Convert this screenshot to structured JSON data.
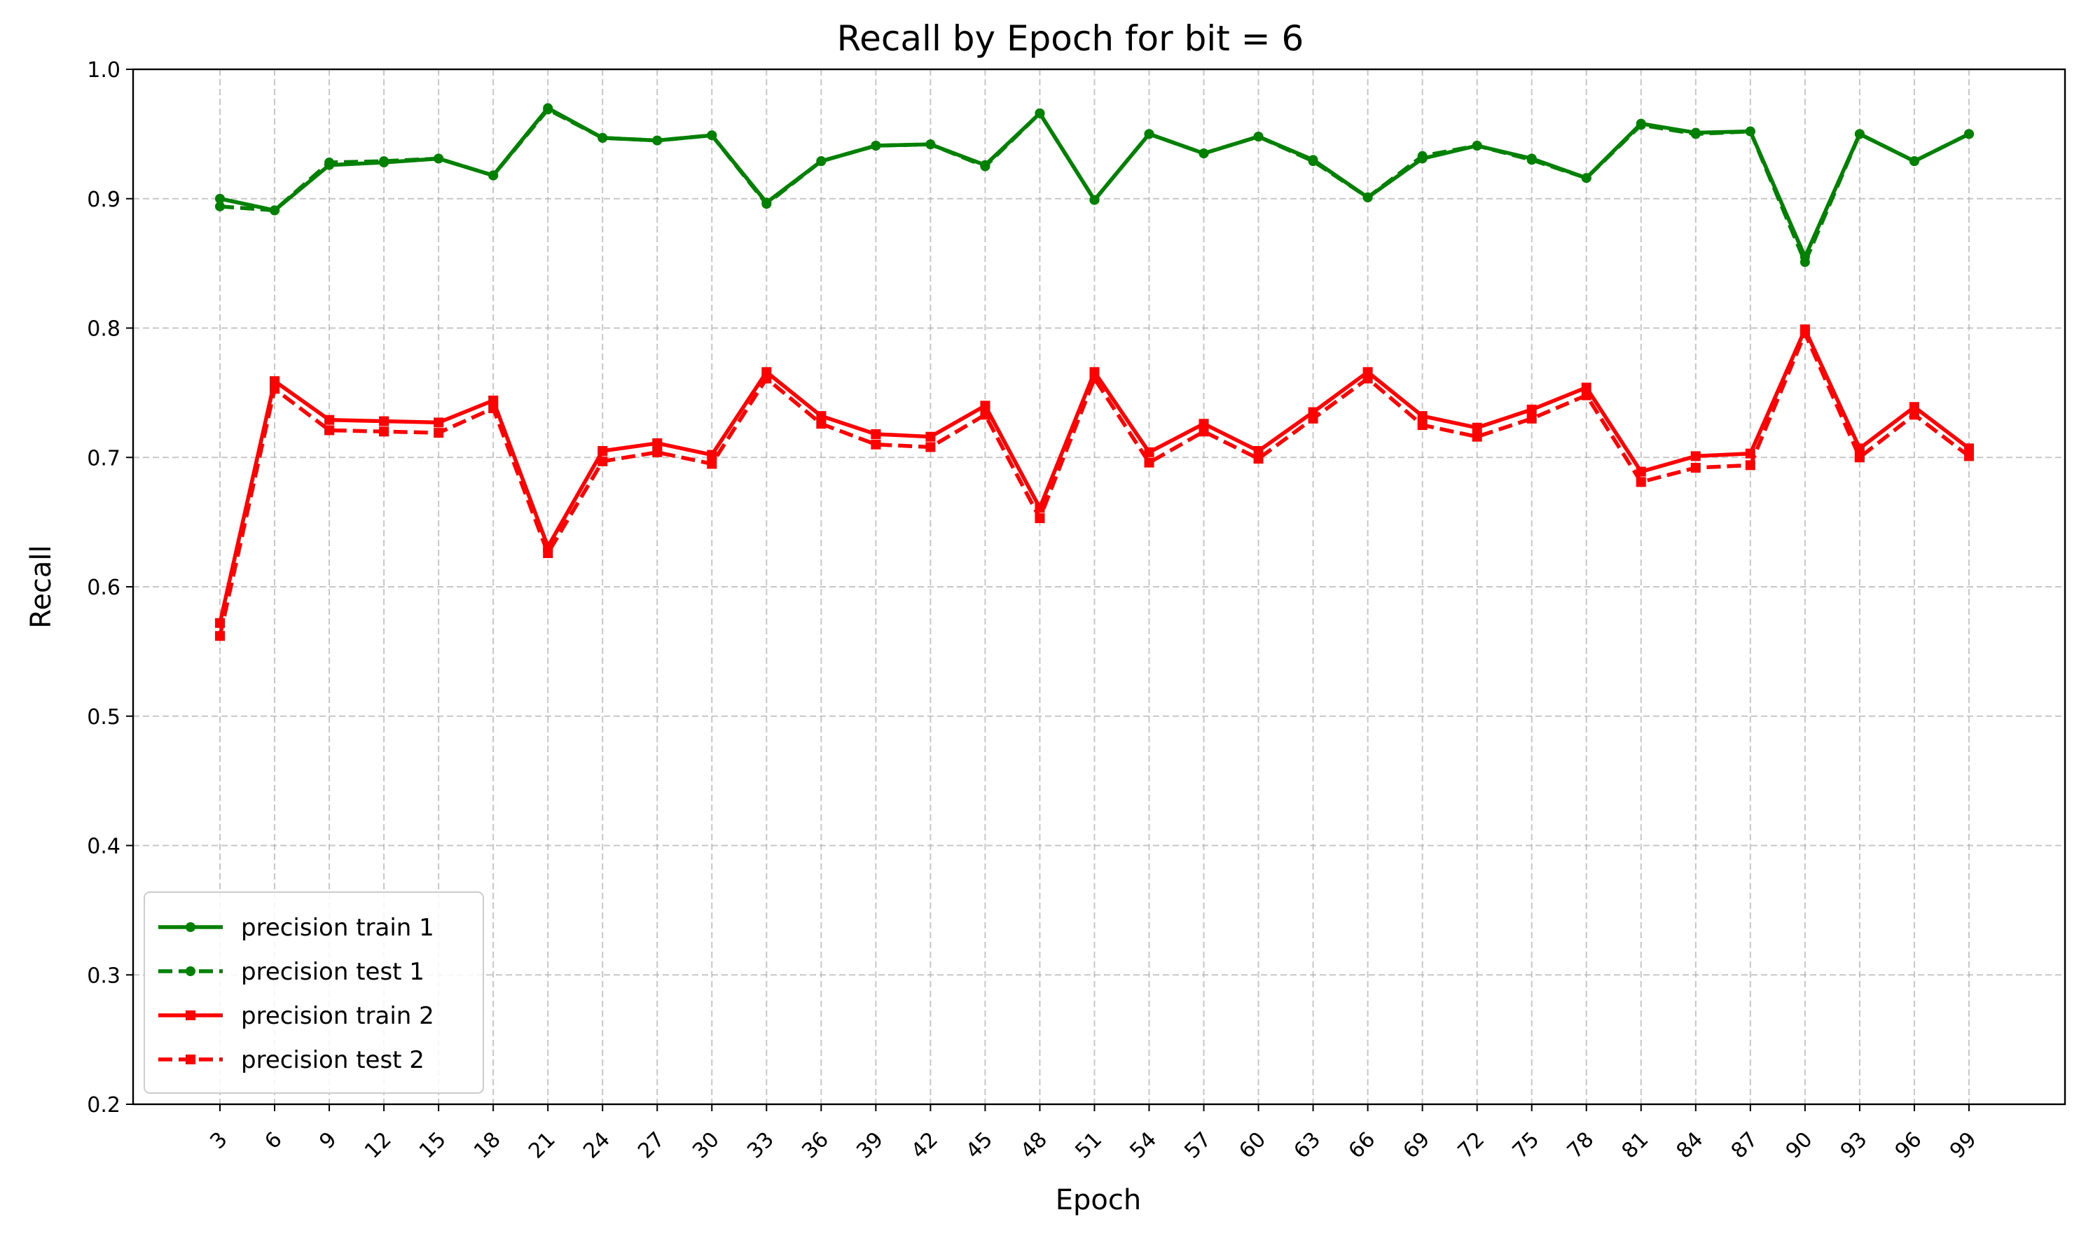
{
  "chart_data": {
    "type": "line",
    "title": "Recall by Epoch for bit = 6",
    "xlabel": "Epoch",
    "ylabel": "Recall",
    "ylim": [
      0.2,
      1.0
    ],
    "yticks": [
      "0.2",
      "0.3",
      "0.4",
      "0.5",
      "0.6",
      "0.7",
      "0.8",
      "0.9",
      "1.0"
    ],
    "x": [
      3,
      6,
      9,
      12,
      15,
      18,
      21,
      24,
      27,
      30,
      33,
      36,
      39,
      42,
      45,
      48,
      51,
      54,
      57,
      60,
      63,
      66,
      69,
      72,
      75,
      78,
      81,
      84,
      87,
      90,
      93,
      96,
      99
    ],
    "grid": true,
    "legend_position": "lower-left",
    "series": [
      {
        "name": "precision train 1",
        "color": "#008000",
        "style": "solid",
        "marker": "circle",
        "values": [
          0.9,
          0.891,
          0.926,
          0.928,
          0.931,
          0.918,
          0.97,
          0.947,
          0.945,
          0.949,
          0.897,
          0.929,
          0.941,
          0.942,
          0.926,
          0.966,
          0.899,
          0.95,
          0.935,
          0.948,
          0.93,
          0.901,
          0.931,
          0.941,
          0.931,
          0.916,
          0.958,
          0.951,
          0.952,
          0.855,
          0.95,
          0.929,
          0.95
        ]
      },
      {
        "name": "precision test 1",
        "color": "#008000",
        "style": "dashed",
        "marker": "circle",
        "values": [
          0.894,
          0.891,
          0.928,
          0.929,
          0.931,
          0.918,
          0.969,
          0.947,
          0.945,
          0.949,
          0.896,
          0.929,
          0.941,
          0.942,
          0.925,
          0.966,
          0.899,
          0.95,
          0.935,
          0.948,
          0.929,
          0.901,
          0.933,
          0.941,
          0.93,
          0.916,
          0.957,
          0.95,
          0.952,
          0.851,
          0.95,
          0.929,
          0.95
        ]
      },
      {
        "name": "precision train 2",
        "color": "#ff0000",
        "style": "solid",
        "marker": "square",
        "values": [
          0.572,
          0.759,
          0.729,
          0.728,
          0.727,
          0.744,
          0.631,
          0.705,
          0.711,
          0.702,
          0.766,
          0.732,
          0.718,
          0.716,
          0.74,
          0.661,
          0.766,
          0.704,
          0.726,
          0.705,
          0.735,
          0.766,
          0.732,
          0.723,
          0.737,
          0.754,
          0.689,
          0.701,
          0.703,
          0.799,
          0.707,
          0.739,
          0.707
        ]
      },
      {
        "name": "precision test 2",
        "color": "#ff0000",
        "style": "dashed",
        "marker": "square",
        "values": [
          0.562,
          0.753,
          0.721,
          0.72,
          0.719,
          0.738,
          0.626,
          0.697,
          0.704,
          0.695,
          0.761,
          0.726,
          0.71,
          0.708,
          0.733,
          0.653,
          0.761,
          0.696,
          0.72,
          0.699,
          0.73,
          0.761,
          0.725,
          0.716,
          0.73,
          0.748,
          0.681,
          0.692,
          0.694,
          0.796,
          0.7,
          0.733,
          0.701
        ]
      }
    ]
  }
}
